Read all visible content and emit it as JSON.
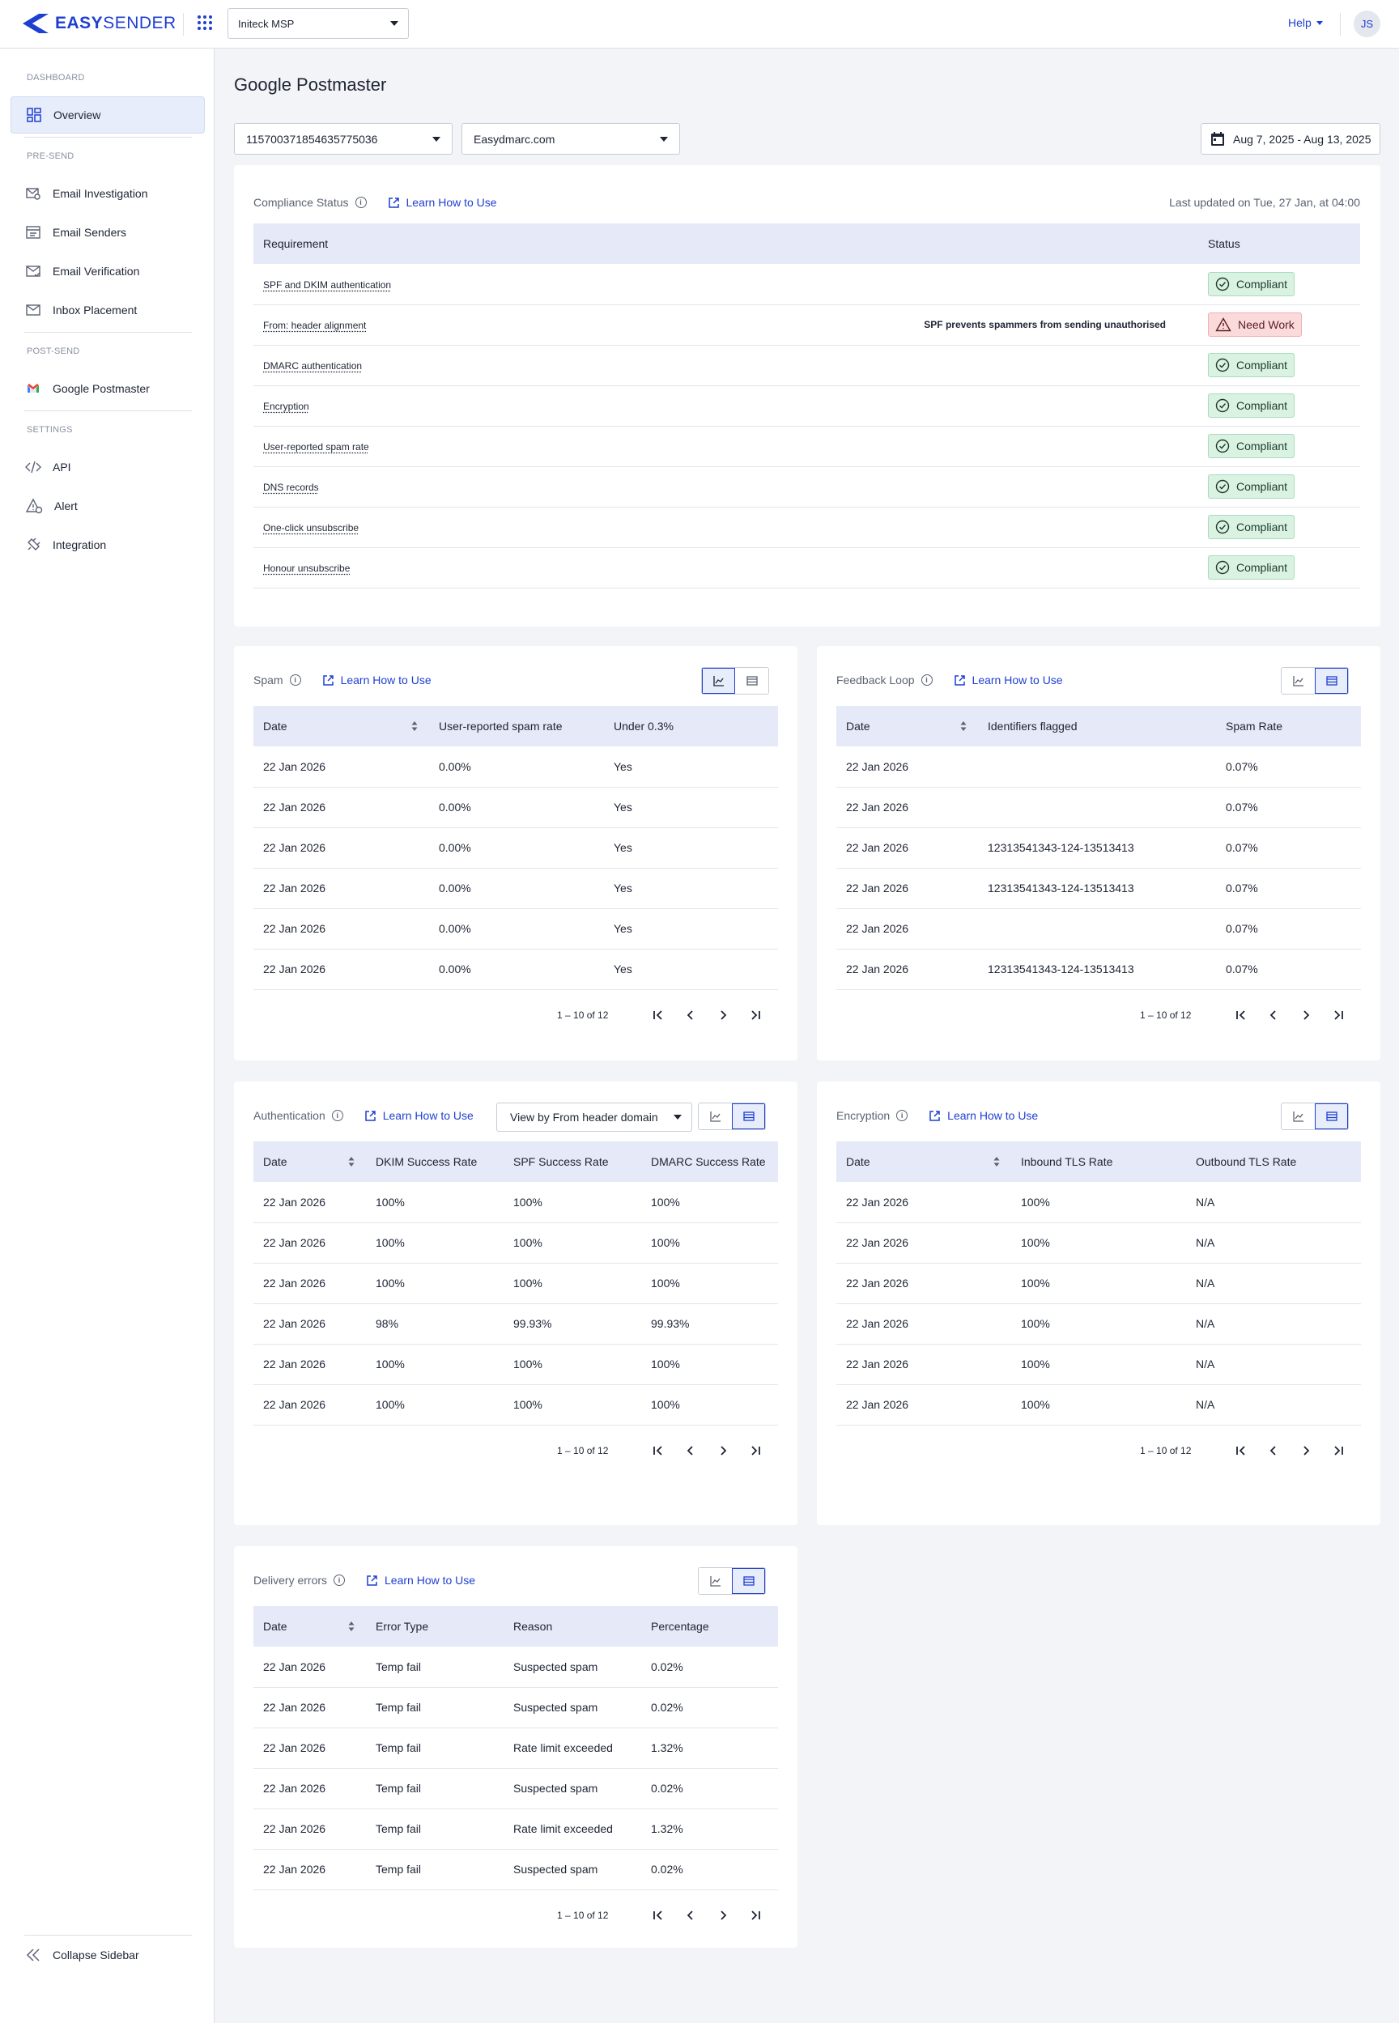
{
  "header": {
    "logo": {
      "bold": "EASY",
      "rest": "SENDER"
    },
    "org_select": "Initeck MSP",
    "help": "Help",
    "avatar": "JS"
  },
  "sidebar": {
    "sections": {
      "dashboard": "DASHBOARD",
      "presend": "PRE-SEND",
      "postsend": "POST-SEND",
      "settings": "SETTINGS"
    },
    "items": {
      "overview": "Overview",
      "email_investigation": "Email Investigation",
      "email_senders": "Email Senders",
      "email_verification": "Email Verification",
      "inbox_placement": "Inbox Placement",
      "google_postmaster": "Google Postmaster",
      "api": "API",
      "alert": "Alert",
      "integration": "Integration"
    },
    "collapse": "Collapse Sidebar"
  },
  "page": {
    "title": "Google Postmaster",
    "account_select": "115700371854635775036",
    "domain_select": "Easydmarc.com",
    "date_range": "Aug 7, 2025 - Aug 13, 2025"
  },
  "learn_label": "Learn How to Use",
  "compliance": {
    "title": "Compliance Status",
    "updated": "Last updated on Tue, 27 Jan, at 04:00",
    "headers": [
      "Requirement",
      "Status"
    ],
    "rows": [
      {
        "req": "SPF and DKIM authentication",
        "note": "",
        "status": "Compliant",
        "ok": true
      },
      {
        "req": "From: header alignment",
        "note": "SPF prevents spammers from sending unauthorised",
        "status": "Need Work",
        "ok": false
      },
      {
        "req": "DMARC authentication",
        "note": "",
        "status": "Compliant",
        "ok": true
      },
      {
        "req": "Encryption",
        "note": "",
        "status": "Compliant",
        "ok": true
      },
      {
        "req": "User-reported spam rate",
        "note": "",
        "status": "Compliant",
        "ok": true
      },
      {
        "req": "DNS records",
        "note": "",
        "status": "Compliant",
        "ok": true
      },
      {
        "req": "One-click unsubscribe",
        "note": "",
        "status": "Compliant",
        "ok": true
      },
      {
        "req": "Honour unsubscribe",
        "note": "",
        "status": "Compliant",
        "ok": true
      }
    ]
  },
  "pager_range": "1 – 10 of 12",
  "spam": {
    "title": "Spam",
    "headers": [
      "Date",
      "User-reported spam rate",
      "Under 0.3%"
    ],
    "rows": [
      [
        "22 Jan 2026",
        "0.00%",
        "Yes"
      ],
      [
        "22 Jan 2026",
        "0.00%",
        "Yes"
      ],
      [
        "22 Jan 2026",
        "0.00%",
        "Yes"
      ],
      [
        "22 Jan 2026",
        "0.00%",
        "Yes"
      ],
      [
        "22 Jan 2026",
        "0.00%",
        "Yes"
      ],
      [
        "22 Jan 2026",
        "0.00%",
        "Yes"
      ]
    ]
  },
  "feedback": {
    "title": "Feedback Loop",
    "headers": [
      "Date",
      "Identifiers flagged",
      "Spam Rate"
    ],
    "rows": [
      [
        "22 Jan 2026",
        "",
        "0.07%"
      ],
      [
        "22 Jan 2026",
        "",
        "0.07%"
      ],
      [
        "22 Jan 2026",
        "12313541343-124-13513413",
        "0.07%"
      ],
      [
        "22 Jan 2026",
        "12313541343-124-13513413",
        "0.07%"
      ],
      [
        "22 Jan 2026",
        "",
        "0.07%"
      ],
      [
        "22 Jan 2026",
        "12313541343-124-13513413",
        "0.07%"
      ]
    ]
  },
  "auth": {
    "title": "Authentication",
    "view_select": "View by From header domain",
    "headers": [
      "Date",
      "DKIM Success Rate",
      "SPF Success Rate",
      "DMARC Success Rate"
    ],
    "rows": [
      [
        "22 Jan 2026",
        "100%",
        "100%",
        "100%"
      ],
      [
        "22 Jan 2026",
        "100%",
        "100%",
        "100%"
      ],
      [
        "22 Jan 2026",
        "100%",
        "100%",
        "100%"
      ],
      [
        "22 Jan 2026",
        "98%",
        "99.93%",
        "99.93%"
      ],
      [
        "22 Jan 2026",
        "100%",
        "100%",
        "100%"
      ],
      [
        "22 Jan 2026",
        "100%",
        "100%",
        "100%"
      ]
    ]
  },
  "encryption": {
    "title": "Encryption",
    "headers": [
      "Date",
      "Inbound TLS Rate",
      "Outbound TLS Rate"
    ],
    "rows": [
      [
        "22 Jan 2026",
        "100%",
        "N/A"
      ],
      [
        "22 Jan 2026",
        "100%",
        "N/A"
      ],
      [
        "22 Jan 2026",
        "100%",
        "N/A"
      ],
      [
        "22 Jan 2026",
        "100%",
        "N/A"
      ],
      [
        "22 Jan 2026",
        "100%",
        "N/A"
      ],
      [
        "22 Jan 2026",
        "100%",
        "N/A"
      ]
    ]
  },
  "delivery": {
    "title": "Delivery errors",
    "headers": [
      "Date",
      "Error Type",
      "Reason",
      "Percentage"
    ],
    "rows": [
      [
        "22 Jan 2026",
        "Temp fail",
        "Suspected spam",
        "0.02%"
      ],
      [
        "22 Jan 2026",
        "Temp fail",
        "Suspected spam",
        "0.02%"
      ],
      [
        "22 Jan 2026",
        "Temp fail",
        "Rate limit exceeded",
        "1.32%"
      ],
      [
        "22 Jan 2026",
        "Temp fail",
        "Suspected spam",
        "0.02%"
      ],
      [
        "22 Jan 2026",
        "Temp fail",
        "Rate limit exceeded",
        "1.32%"
      ],
      [
        "22 Jan 2026",
        "Temp fail",
        "Suspected spam",
        "0.02%"
      ]
    ]
  },
  "colors": {
    "accent": "#1e3fd0",
    "header_bg": "#e6e9f8",
    "ok": "#d9f2e2",
    "bad": "#fbdadb"
  }
}
